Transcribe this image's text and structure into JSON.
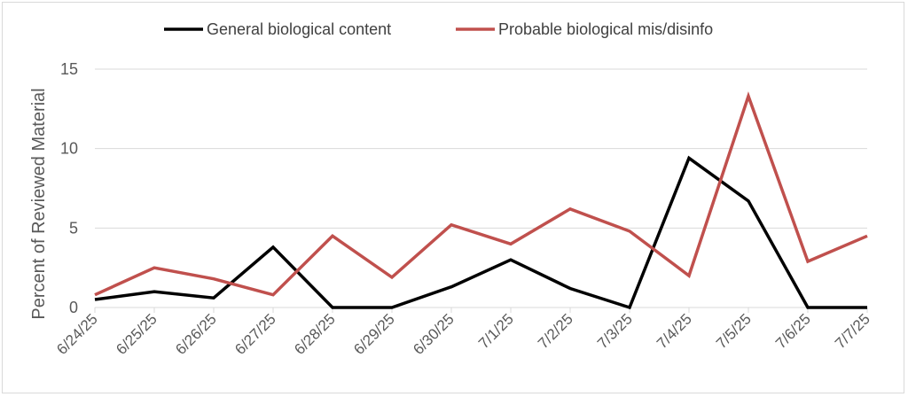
{
  "chart_data": {
    "type": "line",
    "title": "",
    "xlabel": "",
    "ylabel": "Percent of Reviewed Material",
    "ylim": [
      0,
      15
    ],
    "yticks": [
      0,
      5,
      10,
      15
    ],
    "grid": "horizontal",
    "legend_position": "top",
    "categories": [
      "6/24/25",
      "6/25/25",
      "6/26/25",
      "6/27/25",
      "6/28/25",
      "6/29/25",
      "6/30/25",
      "7/1/25",
      "7/2/25",
      "7/3/25",
      "7/4/25",
      "7/5/25",
      "7/6/25",
      "7/7/25"
    ],
    "series": [
      {
        "name": "General biological content",
        "color": "#000000",
        "values": [
          0.5,
          1.0,
          0.6,
          3.8,
          0.0,
          0.0,
          1.3,
          3.0,
          1.2,
          0.0,
          9.4,
          6.7,
          0.0,
          0.0
        ]
      },
      {
        "name": "Probable biological mis/disinfo",
        "color": "#c0504d",
        "values": [
          0.8,
          2.5,
          1.8,
          0.8,
          4.5,
          1.9,
          5.2,
          4.0,
          6.2,
          4.8,
          2.0,
          13.3,
          2.9,
          4.5
        ]
      }
    ]
  }
}
